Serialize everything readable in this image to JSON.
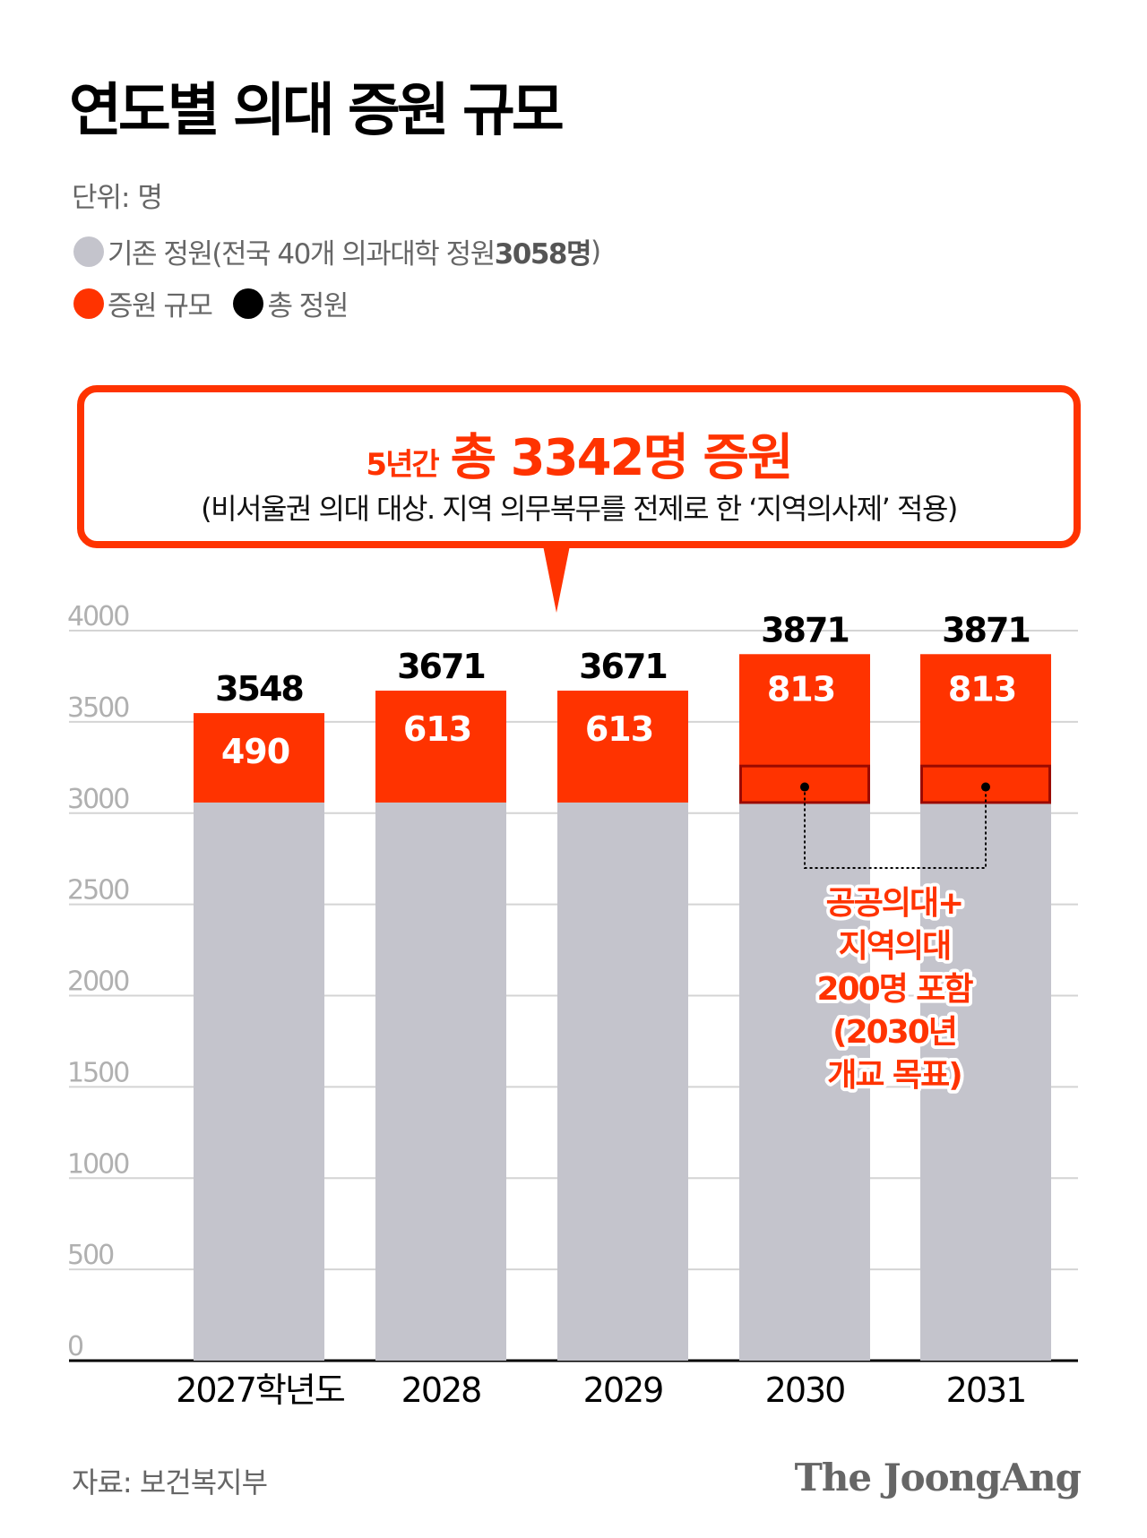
{
  "title": "연도별 의대 증원 규모",
  "unit": "단위: 명",
  "legend": [
    {
      "label": "기존 정원(전국 40개 의과대학 정원 ",
      "bold": "3058명",
      "tail": ")",
      "color": "#C4C4CC"
    },
    {
      "label": "증원 규모",
      "color": "#FF3300"
    },
    {
      "label": "총 정원",
      "color": "#000000"
    }
  ],
  "callout": {
    "prefix": "5년간",
    "headline": "총 3342명 증원",
    "subtitle": "(비서울권 의대 대상. 지역 의무복무를 전제로 한 ‘지역의사제’ 적용)"
  },
  "chart_data": {
    "type": "bar",
    "stacked": true,
    "categories": [
      "2027학년도",
      "2028",
      "2029",
      "2030",
      "2031"
    ],
    "series": [
      {
        "name": "기존 정원",
        "values": [
          3058,
          3058,
          3058,
          3058,
          3058
        ],
        "color": "#C4C4CC"
      },
      {
        "name": "증원 규모",
        "values": [
          490,
          613,
          613,
          813,
          813
        ],
        "color": "#FF3300"
      }
    ],
    "totals": [
      3548,
      3671,
      3671,
      3871,
      3871
    ],
    "included_public_regional": [
      0,
      0,
      0,
      200,
      200
    ],
    "ylim": [
      0,
      4000
    ],
    "yticks": [
      0,
      500,
      1000,
      1500,
      2000,
      2500,
      3000,
      3500,
      4000
    ],
    "grid": true,
    "annotation": [
      "공공의대+",
      "지역의대",
      "200명 포함",
      "(2030년",
      "개교 목표)"
    ]
  },
  "source": "자료: 보건복지부",
  "logo": "The JoongAng"
}
